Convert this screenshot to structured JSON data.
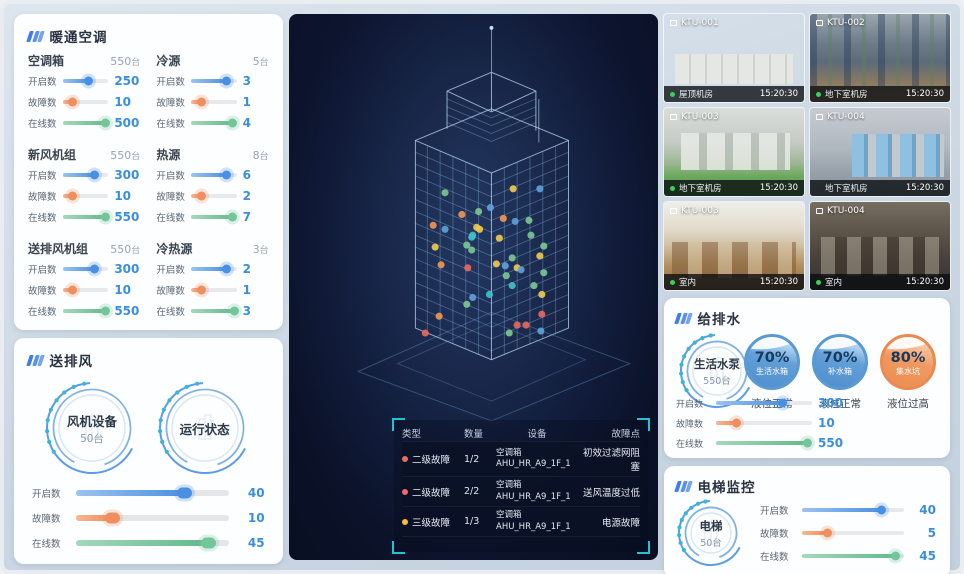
{
  "hvac": {
    "title": "暖通空调",
    "groups": [
      {
        "name": "空调箱",
        "count": "550",
        "unit": "台",
        "sliders": [
          {
            "label": "开启数",
            "value": "250",
            "pct": 58
          },
          {
            "label": "故障数",
            "value": "10",
            "pct": 22
          },
          {
            "label": "在线数",
            "value": "500",
            "pct": 96
          }
        ]
      },
      {
        "name": "冷源",
        "count": "5",
        "unit": "台",
        "sliders": [
          {
            "label": "开启数",
            "value": "3",
            "pct": 78
          },
          {
            "label": "故障数",
            "value": "1",
            "pct": 25
          },
          {
            "label": "在线数",
            "value": "4",
            "pct": 92
          }
        ]
      },
      {
        "name": "新风机组",
        "count": "550",
        "unit": "台",
        "sliders": [
          {
            "label": "开启数",
            "value": "300",
            "pct": 70
          },
          {
            "label": "故障数",
            "value": "10",
            "pct": 22
          },
          {
            "label": "在线数",
            "value": "550",
            "pct": 96
          }
        ]
      },
      {
        "name": "热源",
        "count": "8",
        "unit": "台",
        "sliders": [
          {
            "label": "开启数",
            "value": "6",
            "pct": 78
          },
          {
            "label": "故障数",
            "value": "2",
            "pct": 25
          },
          {
            "label": "在线数",
            "value": "7",
            "pct": 92
          }
        ]
      },
      {
        "name": "送排风机组",
        "count": "550",
        "unit": "台",
        "sliders": [
          {
            "label": "开启数",
            "value": "300",
            "pct": 70
          },
          {
            "label": "故障数",
            "value": "10",
            "pct": 22
          },
          {
            "label": "在线数",
            "value": "550",
            "pct": 96
          }
        ]
      },
      {
        "name": "冷热源",
        "count": "3",
        "unit": "台",
        "sliders": [
          {
            "label": "开启数",
            "value": "2",
            "pct": 78
          },
          {
            "label": "故障数",
            "value": "1",
            "pct": 25
          },
          {
            "label": "在线数",
            "value": "3",
            "pct": 96
          }
        ]
      }
    ]
  },
  "fan": {
    "title": "送排风",
    "gauge1": {
      "label": "风机设备",
      "sub": "50台"
    },
    "gauge2": {
      "label": "运行状态",
      "sub": ""
    },
    "sliders": [
      {
        "label": "开启数",
        "value": "40",
        "pct": 72
      },
      {
        "label": "故障数",
        "value": "10",
        "pct": 25
      },
      {
        "label": "在线数",
        "value": "45",
        "pct": 88
      }
    ]
  },
  "cameras": {
    "items": [
      {
        "id": "KTU-001",
        "location": "屋顶机房",
        "time": "15:20:30",
        "online": true
      },
      {
        "id": "KTU-002",
        "location": "地下室机房",
        "time": "15:20:30",
        "online": true
      },
      {
        "id": "KTU-003",
        "location": "地下室机房",
        "time": "15:20:30",
        "online": true
      },
      {
        "id": "KTU-004",
        "location": "地下室机房",
        "time": "15:20:30",
        "online": false
      },
      {
        "id": "KTU-003",
        "location": "室内",
        "time": "15:20:30",
        "online": true
      },
      {
        "id": "KTU-004",
        "location": "室内",
        "time": "15:20:30",
        "online": true
      }
    ]
  },
  "water": {
    "title": "给排水",
    "gauge": {
      "label": "生活水泵",
      "sub": "550台"
    },
    "tanks": [
      {
        "pct": "70%",
        "name": "生活水箱",
        "status": "液位正常",
        "color": "blue"
      },
      {
        "pct": "70%",
        "name": "补水箱",
        "status": "液位正常",
        "color": "blue"
      },
      {
        "pct": "80%",
        "name": "集水坑",
        "status": "液位过高",
        "color": "orange"
      }
    ],
    "sliders": [
      {
        "label": "开启数",
        "value": "300",
        "pct": 70
      },
      {
        "label": "故障数",
        "value": "10",
        "pct": 22
      },
      {
        "label": "在线数",
        "value": "550",
        "pct": 96
      }
    ]
  },
  "elevator": {
    "title": "电梯监控",
    "gauge": {
      "label": "电梯",
      "sub": "50台"
    },
    "sliders": [
      {
        "label": "开启数",
        "value": "40",
        "pct": 78
      },
      {
        "label": "故障数",
        "value": "5",
        "pct": 25
      },
      {
        "label": "在线数",
        "value": "45",
        "pct": 92
      }
    ]
  },
  "center_table": {
    "headers": [
      "类型",
      "数量",
      "设备",
      "故障点"
    ],
    "partial_device": "AHU_HR_A9_1F_1",
    "rows": [
      {
        "type": "二级故障",
        "dot": "#ef6b68",
        "qty": "1/2",
        "device1": "空调箱",
        "device2": "AHU_HR_A9_1F_1",
        "fault": "初效过滤网阻塞"
      },
      {
        "type": "二级故障",
        "dot": "#ef6b68",
        "qty": "2/2",
        "device1": "空调箱",
        "device2": "AHU_HR_A9_1F_1",
        "fault": "送风温度过低"
      },
      {
        "type": "三级故障",
        "dot": "#f2c03c",
        "qty": "1/3",
        "device1": "空调箱",
        "device2": "AHU_HR_A9_1F_1",
        "fault": "电源故障"
      }
    ]
  },
  "colors": {
    "accent": "#3f7ee8",
    "blue": "#4a90e2",
    "orange": "#ef8f60",
    "green": "#74c69a",
    "teal": "#23c2d6",
    "value_text": "#3a8edd"
  }
}
